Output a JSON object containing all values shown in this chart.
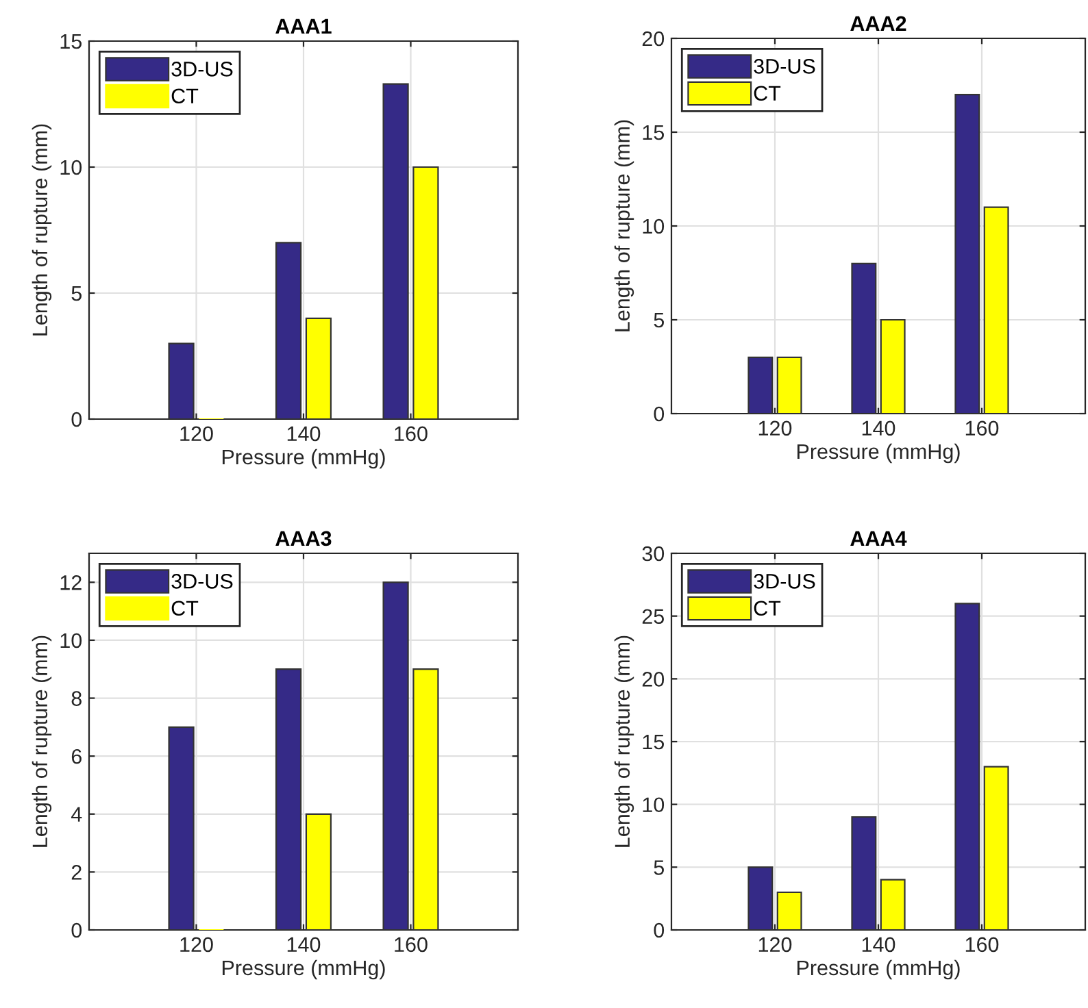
{
  "chart_data": [
    {
      "type": "bar",
      "title": "AAA1",
      "xlabel": "Pressure (mmHg)",
      "ylabel": "Length of rupture (mm)",
      "x": [
        120,
        140,
        160
      ],
      "xlim": [
        100,
        180
      ],
      "xticks": [
        120,
        140,
        160
      ],
      "ylim": [
        0,
        15
      ],
      "yticks": [
        0,
        5,
        10,
        15
      ],
      "grid": true,
      "legend": "top left",
      "series": [
        {
          "name": "3D-US",
          "color": "#352a87",
          "values": [
            3,
            7,
            13.3
          ]
        },
        {
          "name": "CT",
          "color": "#ffff00",
          "values": [
            0,
            4,
            10
          ]
        }
      ]
    },
    {
      "type": "bar",
      "title": "AAA2",
      "xlabel": "Pressure (mmHg)",
      "ylabel": "Length of rupture (mm)",
      "x": [
        120,
        140,
        160
      ],
      "xlim": [
        100,
        180
      ],
      "xticks": [
        120,
        140,
        160
      ],
      "ylim": [
        0,
        20
      ],
      "yticks": [
        0,
        5,
        10,
        15,
        20
      ],
      "grid": true,
      "legend": "top left",
      "series": [
        {
          "name": "3D-US",
          "color": "#352a87",
          "values": [
            3,
            8,
            17
          ]
        },
        {
          "name": "CT",
          "color": "#ffff00",
          "values": [
            3,
            5,
            11
          ]
        }
      ]
    },
    {
      "type": "bar",
      "title": "AAA3",
      "xlabel": "Pressure (mmHg)",
      "ylabel": "Length of rupture (mm)",
      "x": [
        120,
        140,
        160
      ],
      "xlim": [
        100,
        180
      ],
      "xticks": [
        120,
        140,
        160
      ],
      "ylim": [
        0,
        13
      ],
      "yticks": [
        0,
        2,
        4,
        6,
        8,
        10,
        12
      ],
      "grid": true,
      "legend": "top left",
      "series": [
        {
          "name": "3D-US",
          "color": "#352a87",
          "values": [
            7,
            9,
            12
          ]
        },
        {
          "name": "CT",
          "color": "#ffff00",
          "values": [
            0,
            4,
            9
          ]
        }
      ]
    },
    {
      "type": "bar",
      "title": "AAA4",
      "xlabel": "Pressure (mmHg)",
      "ylabel": "Length of rupture (mm)",
      "x": [
        120,
        140,
        160
      ],
      "xlim": [
        100,
        180
      ],
      "xticks": [
        120,
        140,
        160
      ],
      "ylim": [
        0,
        30
      ],
      "yticks": [
        0,
        5,
        10,
        15,
        20,
        25,
        30
      ],
      "grid": true,
      "legend": "top left",
      "series": [
        {
          "name": "3D-US",
          "color": "#352a87",
          "values": [
            5,
            9,
            26
          ]
        },
        {
          "name": "CT",
          "color": "#ffff00",
          "values": [
            3,
            4,
            13
          ]
        }
      ]
    }
  ]
}
